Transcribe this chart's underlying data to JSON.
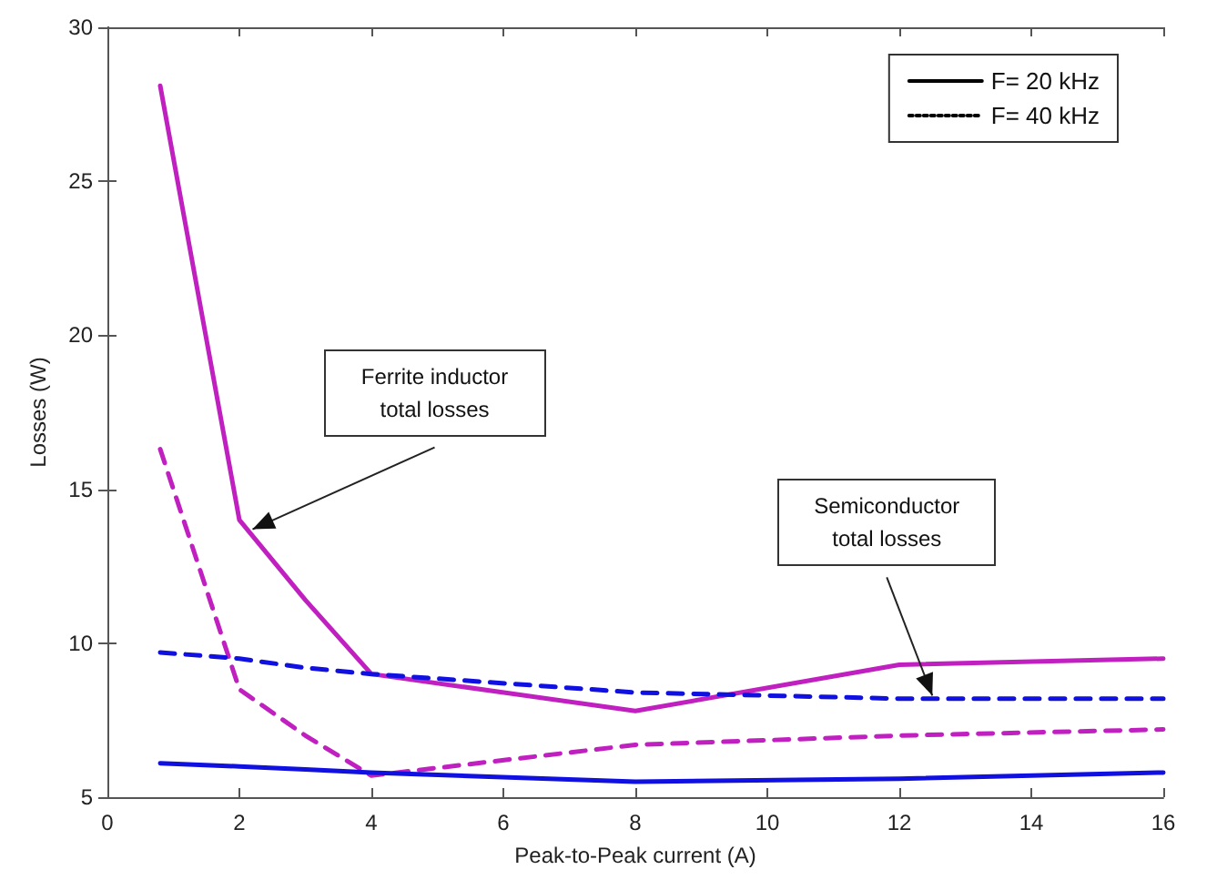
{
  "chart_data": {
    "type": "line",
    "xlabel": "Peak-to-Peak current (A)",
    "ylabel": "Losses (W)",
    "x": [
      0.8,
      2,
      3,
      4,
      8,
      12,
      16
    ],
    "series": [
      {
        "color": "#c020c0",
        "line_style": "solid",
        "values": [
          28.1,
          14.0,
          11.4,
          9.0,
          7.8,
          9.3,
          9.5
        ]
      },
      {
        "color": "#c020c0",
        "line_style": "dashed",
        "values": [
          16.3,
          8.5,
          7.0,
          5.7,
          6.7,
          7.0,
          7.2
        ]
      },
      {
        "color": "#1010e0",
        "line_style": "dashed",
        "values": [
          9.7,
          9.5,
          9.2,
          9.0,
          8.4,
          8.2,
          8.2
        ]
      },
      {
        "color": "#1010e0",
        "line_style": "solid",
        "values": [
          6.1,
          6.0,
          5.9,
          5.8,
          5.5,
          5.6,
          5.8
        ]
      },
      {
        "name": "F= 20 kHz",
        "color": "#000000",
        "line_style": "solid",
        "values": [
          null,
          null,
          null,
          null,
          null,
          null,
          null
        ]
      },
      {
        "name": "F= 40 kHz",
        "color": "#000000",
        "line_style": "dotted",
        "values": [
          null,
          null,
          null,
          null,
          null,
          null,
          null
        ]
      }
    ],
    "annotations": [
      {
        "text": "Ferrite inductor total losses",
        "x": 2.2,
        "y": 13.7
      },
      {
        "text": "Semiconductor total losses",
        "x": 12.5,
        "y": 8.3
      }
    ],
    "xlim": [
      0,
      16
    ],
    "xticks": [
      0,
      2,
      4,
      6,
      8,
      10,
      12,
      14,
      16
    ],
    "ylim": [
      5,
      30
    ],
    "yticks": [
      5,
      10,
      15,
      20,
      25,
      30
    ],
    "grid": false,
    "legend": "top right",
    "marker": "none"
  }
}
